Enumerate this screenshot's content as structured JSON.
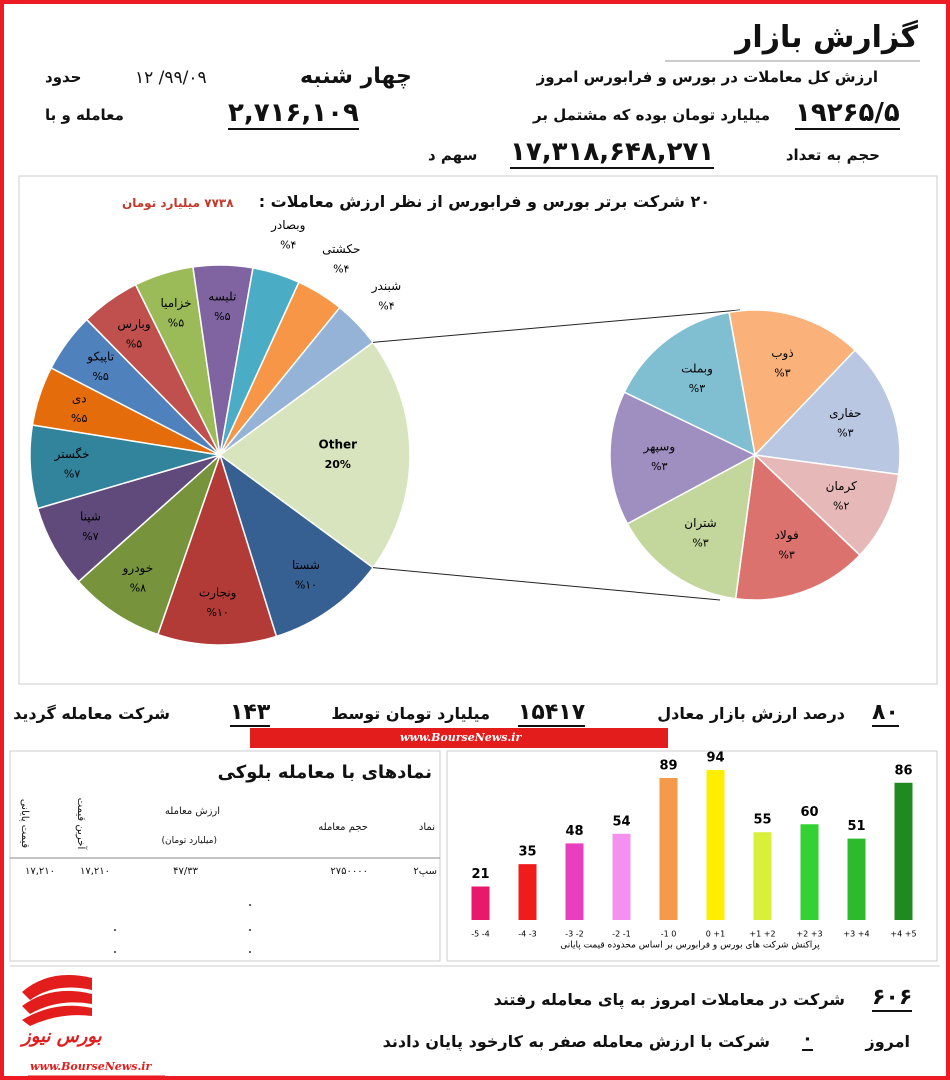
{
  "header": {
    "title": "گزارش بازار"
  },
  "summary": {
    "line1": {
      "text": "ارزش کل معاملات در  بورس و فرابورس امروز",
      "day": "چهار شنبه",
      "date": "۹۹/۰۹/ ۱۲",
      "about": "حدود"
    },
    "line2": {
      "value": "۱۹۲۶۵/۵",
      "text": "میلیارد تومان بوده که مشتمل بر",
      "trades": "۲,۷۱۶,۱۰۹",
      "text2": "معامله و با"
    },
    "line3": {
      "text": "حجم به تعداد",
      "volume": "۱۷,۳۱۸,۶۴۸,۲۷۱",
      "text2": "سهم د"
    }
  },
  "chart_data": [
    {
      "type": "pie",
      "title": "۲۰ شرکت برتر بورس و فرابورس از نظر ارزش معاملات :",
      "subtitle": "۷۷۳۸ میلیارد تومان",
      "categories": [
        "Other",
        "شستا",
        "ونجارت",
        "خودرو",
        "شپنا",
        "خگستر",
        "دی",
        "تاپیکو",
        "وبارس",
        "خزامیا",
        "تلیسه",
        "وبصادر",
        "حکشتی",
        "شبندر"
      ],
      "values": [
        20,
        10,
        10,
        8,
        7,
        7,
        5,
        5,
        5,
        5,
        5,
        4,
        4,
        4
      ],
      "value_labels": [
        "20%",
        "%۱۰",
        "%۱۰",
        "%۸",
        "%۷",
        "%۷",
        "%۵",
        "%۵",
        "%۵",
        "%۵",
        "%۵",
        "%۴",
        "%۴",
        "%۴"
      ],
      "colors": [
        "#d7e4bd",
        "#376092",
        "#b23b38",
        "#77933c",
        "#604a7b",
        "#31849b",
        "#e46c0a",
        "#4f81bd",
        "#c0504d",
        "#9bbb59",
        "#8064a2",
        "#4bacc6",
        "#f79646",
        "#95b3d7"
      ],
      "breakdown": {
        "categories": [
          "ذوب",
          "حفاری",
          "کرمان",
          "فولاد",
          "شتران",
          "وسپهر",
          "وبملت"
        ],
        "values": [
          3,
          3,
          2,
          3,
          3,
          3,
          3
        ],
        "value_labels": [
          "%۳",
          "%۳",
          "%۲",
          "%۳",
          "%۳",
          "%۳",
          "%۳"
        ],
        "colors": [
          "#fab17a",
          "#b9c7e2",
          "#e6b9b8",
          "#dc726e",
          "#c3d69b",
          "#9f8ec0",
          "#7fbfd1"
        ]
      }
    },
    {
      "type": "bar",
      "x_label": "پراکنش شرکت های بورس و فرابورس  بر اساس  محدوده قیمت پایانی",
      "categories": [
        "-5  -4",
        "-4  -3",
        "-3  -2",
        "-2  -1",
        "-1  0",
        "0  +1",
        "+1  +2",
        "+2  +3",
        "+3  +4",
        "+4  +5"
      ],
      "values": [
        21,
        35,
        48,
        54,
        89,
        94,
        55,
        60,
        51,
        86
      ],
      "colors": [
        "#e8196b",
        "#f01c1c",
        "#e83fbf",
        "#f490f0",
        "#f59a4a",
        "#ffee00",
        "#d8f03a",
        "#33d133",
        "#2dbb2d",
        "#1f8a1f"
      ]
    }
  ],
  "market_share": {
    "percent": "۸۰",
    "text": "درصد ارزش بازار معادل",
    "value": "۱۵۴۱۷",
    "text2": "میلیارد تومان توسط",
    "count": "۱۴۳",
    "text3": "شرکت معامله گردید"
  },
  "watermark": "www.BourseNews.ir",
  "block_trades": {
    "title": "نمادهای با معامله بلوکی",
    "columns": [
      "نماد",
      "حجم معامله",
      "ارزش معامله",
      "آخرین قیمت",
      "قیمت پایانی"
    ],
    "value_unit": "(میلیارد تومان)",
    "rows": [
      [
        "سپ۲",
        "۲۷۵۰۰۰۰",
        "۴۷/۳۳",
        "۱۷,۲۱۰",
        "۱۷,۲۱۰"
      ]
    ]
  },
  "footer": {
    "count": "۶۰۶",
    "text": "شرکت در معاملات امروز به پای معامله رفتند",
    "today": "امروز",
    "zero": "۰",
    "text2": "شرکت با ارزش معامله صفر به کارخود  پایان دادند",
    "logo": "بورس نیوز"
  }
}
